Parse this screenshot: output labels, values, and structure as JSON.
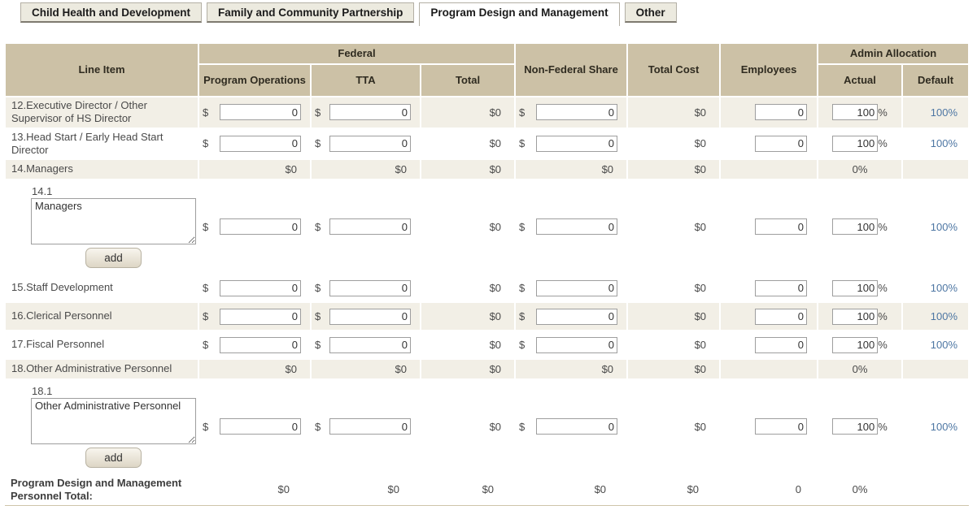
{
  "tabs": [
    {
      "label": "Child Health and Development",
      "active": false
    },
    {
      "label": "Family and Community Partnership",
      "active": false
    },
    {
      "label": "Program Design and Management",
      "active": true
    },
    {
      "label": "Other",
      "active": false
    }
  ],
  "table": {
    "headers": {
      "line_item": "Line Item",
      "federal": "Federal",
      "program_operations": "Program Operations",
      "tta": "TTA",
      "total": "Total",
      "non_federal_share": "Non-Federal Share",
      "total_cost": "Total Cost",
      "employees": "Employees",
      "admin_allocation": "Admin Allocation",
      "actual": "Actual",
      "default": "Default"
    },
    "currency_symbol": "$",
    "percent_symbol": "%",
    "add_button_label": "add",
    "rows": [
      {
        "id": "12",
        "type": "input",
        "shaded": true,
        "label": "12.Executive Director / Other Supervisor of HS Director",
        "program_operations": "0",
        "tta": "0",
        "federal_total": "$0",
        "non_federal_share": "0",
        "total_cost": "$0",
        "employees": "0",
        "actual": "100",
        "default": "100%"
      },
      {
        "id": "13",
        "type": "input",
        "shaded": false,
        "label": "13.Head Start / Early Head Start Director",
        "program_operations": "0",
        "tta": "0",
        "federal_total": "$0",
        "non_federal_share": "0",
        "total_cost": "$0",
        "employees": "0",
        "actual": "100",
        "default": "100%"
      },
      {
        "id": "14",
        "type": "subtotal",
        "shaded": true,
        "label": "14.Managers",
        "program_operations": "$0",
        "tta": "$0",
        "federal_total": "$0",
        "non_federal_share": "$0",
        "total_cost": "$0",
        "actual": "0%"
      },
      {
        "id": "14.1",
        "type": "custom",
        "shaded": false,
        "number": "14.1",
        "textarea_value": "Managers",
        "program_operations": "0",
        "tta": "0",
        "federal_total": "$0",
        "non_federal_share": "0",
        "total_cost": "$0",
        "employees": "0",
        "actual": "100",
        "default": "100%"
      },
      {
        "id": "15",
        "type": "input",
        "shaded": false,
        "label": "15.Staff Development",
        "program_operations": "0",
        "tta": "0",
        "federal_total": "$0",
        "non_federal_share": "0",
        "total_cost": "$0",
        "employees": "0",
        "actual": "100",
        "default": "100%"
      },
      {
        "id": "16",
        "type": "input",
        "shaded": true,
        "label": "16.Clerical Personnel",
        "program_operations": "0",
        "tta": "0",
        "federal_total": "$0",
        "non_federal_share": "0",
        "total_cost": "$0",
        "employees": "0",
        "actual": "100",
        "default": "100%"
      },
      {
        "id": "17",
        "type": "input",
        "shaded": false,
        "label": "17.Fiscal Personnel",
        "program_operations": "0",
        "tta": "0",
        "federal_total": "$0",
        "non_federal_share": "0",
        "total_cost": "$0",
        "employees": "0",
        "actual": "100",
        "default": "100%"
      },
      {
        "id": "18",
        "type": "subtotal",
        "shaded": true,
        "label": "18.Other Administrative Personnel",
        "program_operations": "$0",
        "tta": "$0",
        "federal_total": "$0",
        "non_federal_share": "$0",
        "total_cost": "$0",
        "actual": "0%"
      },
      {
        "id": "18.1",
        "type": "custom",
        "shaded": false,
        "number": "18.1",
        "textarea_value": "Other Administrative Personnel",
        "program_operations": "0",
        "tta": "0",
        "federal_total": "$0",
        "non_federal_share": "0",
        "total_cost": "$0",
        "employees": "0",
        "actual": "100",
        "default": "100%"
      }
    ],
    "total_row": {
      "label": "Program Design and Management Personnel Total:",
      "program_operations": "$0",
      "tta": "$0",
      "federal_total": "$0",
      "non_federal_share": "$0",
      "total_cost": "$0",
      "employees": "0",
      "actual": "0%"
    }
  },
  "colors": {
    "header_bg": "#ccc1a6",
    "row_shade": "#f2efe6",
    "link": "#4d76a3",
    "table_line": "#cfc5aa",
    "tab_inactive_bg": "#eceadf"
  }
}
